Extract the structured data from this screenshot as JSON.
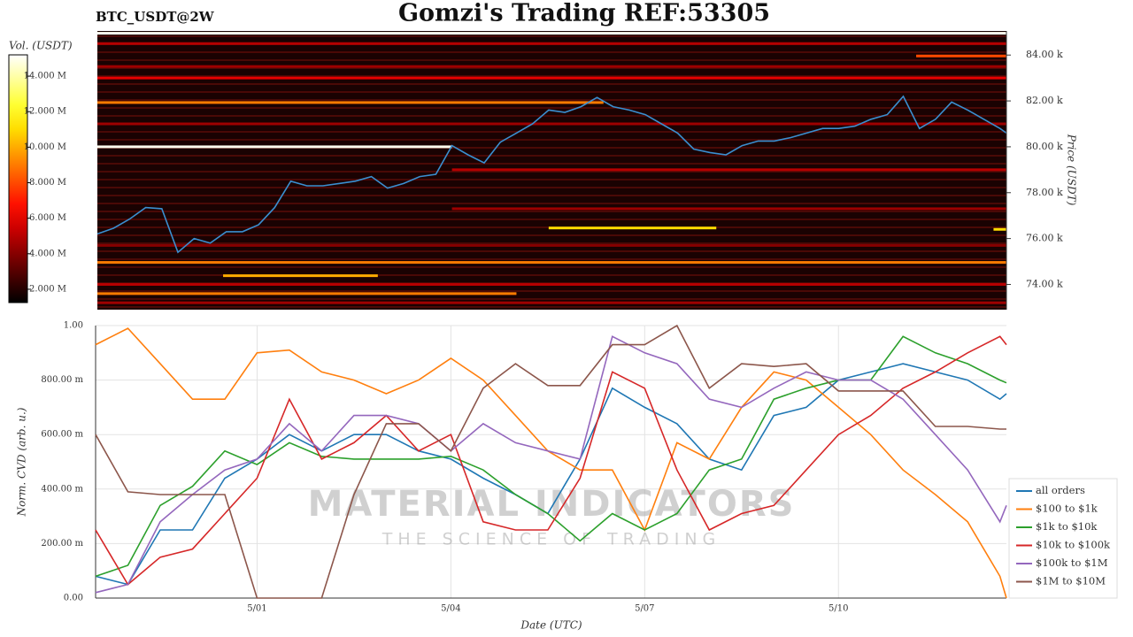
{
  "chart_data": [
    {
      "type": "heatmap",
      "title": "Gomzi's Trading REF:53305",
      "subtitle": "BTC_USDT@2W",
      "y_label": "Price (USDT)",
      "colorbar_label": "Vol. (USDT)",
      "xlim": [
        0.5,
        14.6
      ],
      "ylim": [
        72900,
        85050
      ],
      "yticks": [
        {
          "value": 74000,
          "label": "74.00 k"
        },
        {
          "value": 76000,
          "label": "76.00 k"
        },
        {
          "value": 78000,
          "label": "78.00 k"
        },
        {
          "value": 80000,
          "label": "80.00 k"
        },
        {
          "value": 82000,
          "label": "82.00 k"
        },
        {
          "value": 84000,
          "label": "84.00 k"
        }
      ],
      "colorbar_lim": [
        1250000,
        15200000
      ],
      "colorbar_ticks": [
        {
          "value": 2000000,
          "label": "2.000 M"
        },
        {
          "value": 4000000,
          "label": "4.000 M"
        },
        {
          "value": 6000000,
          "label": "6.000 M"
        },
        {
          "value": 8000000,
          "label": "8.000 M"
        },
        {
          "value": 10000000,
          "label": "10.000 M"
        },
        {
          "value": 12000000,
          "label": "12.000 M"
        },
        {
          "value": 14000000,
          "label": "14.000 M"
        }
      ],
      "levels": {
        "price": [
          84950,
          80000,
          76460,
          74960,
          74380,
          73600,
          81930,
          83000,
          83960,
          76400,
          84500,
          83500,
          81000,
          79000,
          77300,
          75700,
          74000,
          73200
        ],
        "start": [
          0.5,
          0.5,
          7.5,
          0.5,
          2.45,
          0.5,
          0.5,
          0.5,
          13.2,
          14.4,
          0.5,
          0.5,
          0.5,
          6.0,
          6.0,
          0.5,
          0.5,
          0.5
        ],
        "end": [
          14.6,
          6.0,
          10.1,
          14.6,
          4.85,
          7.0,
          8.35,
          14.6,
          14.6,
          14.6,
          14.6,
          14.6,
          14.6,
          14.6,
          14.6,
          14.6,
          14.6,
          14.6
        ],
        "volume": [
          15000000,
          15000000,
          11000000,
          9000000,
          10000000,
          9000000,
          9000000,
          6000000,
          8000000,
          11000000,
          5000000,
          4500000,
          4500000,
          5000000,
          4500000,
          4000000,
          5000000,
          4500000
        ]
      },
      "price_series": {
        "color": "#3a8fd0",
        "x": [
          0.5,
          0.75,
          1,
          1.25,
          1.5,
          1.75,
          2,
          2.25,
          2.5,
          2.75,
          3,
          3.25,
          3.5,
          3.75,
          4,
          4.25,
          4.5,
          4.75,
          5,
          5.25,
          5.5,
          5.75,
          6,
          6.25,
          6.5,
          6.75,
          7,
          7.25,
          7.5,
          7.75,
          8,
          8.25,
          8.5,
          8.75,
          9,
          9.25,
          9.5,
          9.75,
          10,
          10.25,
          10.5,
          10.75,
          11,
          11.25,
          11.5,
          11.75,
          12,
          12.25,
          12.5,
          12.75,
          13,
          13.25,
          13.5,
          13.75,
          14,
          14.25,
          14.5,
          14.6
        ],
        "values": [
          76200,
          76450,
          76850,
          77350,
          77300,
          75400,
          76000,
          75800,
          76300,
          76300,
          76600,
          77350,
          78500,
          78300,
          78300,
          78400,
          78500,
          78700,
          78200,
          78400,
          78700,
          78800,
          80050,
          79650,
          79300,
          80200,
          80600,
          81000,
          81600,
          81500,
          81750,
          82150,
          81750,
          81600,
          81400,
          81000,
          80600,
          79900,
          79750,
          79650,
          80050,
          80250,
          80250,
          80400,
          80600,
          80800,
          80800,
          80900,
          81200,
          81400,
          82200,
          80800,
          81200,
          81950,
          81600,
          81200,
          80800,
          80600
        ]
      }
    },
    {
      "type": "line",
      "y_label": "Norm. CVD (arb. u.)",
      "x_label": "Date (UTC)",
      "xlim": [
        0.5,
        14.6
      ],
      "ylim": [
        0,
        1
      ],
      "xticks": [
        {
          "value": 3,
          "label": "5/01"
        },
        {
          "value": 6,
          "label": "5/04"
        },
        {
          "value": 9,
          "label": "5/07"
        },
        {
          "value": 12,
          "label": "5/10"
        }
      ],
      "yticks": [
        {
          "value": 0,
          "label": "0.00"
        },
        {
          "value": 0.2,
          "label": "200.00 m"
        },
        {
          "value": 0.4,
          "label": "400.00 m"
        },
        {
          "value": 0.6,
          "label": "600.00 m"
        },
        {
          "value": 0.8,
          "label": "800.00 m"
        },
        {
          "value": 1,
          "label": "1.00"
        }
      ],
      "grid": true,
      "legend": "lower right",
      "watermark": [
        "MATERIAL INDICATORS",
        "THE SCIENCE OF TRADING"
      ],
      "x": [
        0.5,
        1,
        1.5,
        2,
        2.5,
        3,
        3.5,
        4,
        4.5,
        5,
        5.5,
        6,
        6.5,
        7,
        7.5,
        8,
        8.5,
        9,
        9.5,
        10,
        10.5,
        11,
        11.5,
        12,
        12.5,
        13,
        13.5,
        14,
        14.5,
        14.6
      ],
      "series": [
        {
          "name": "all orders",
          "color": "#1f77b4",
          "values": [
            0.08,
            0.05,
            0.25,
            0.25,
            0.44,
            0.51,
            0.6,
            0.54,
            0.6,
            0.6,
            0.54,
            0.51,
            0.44,
            0.38,
            0.31,
            0.51,
            0.77,
            0.7,
            0.64,
            0.51,
            0.47,
            0.67,
            0.7,
            0.8,
            0.83,
            0.86,
            0.83,
            0.8,
            0.73,
            0.75
          ]
        },
        {
          "name": "$100 to $1k",
          "color": "#ff7f0e",
          "values": [
            0.93,
            0.99,
            0.86,
            0.73,
            0.73,
            0.9,
            0.91,
            0.83,
            0.8,
            0.75,
            0.8,
            0.88,
            0.8,
            0.67,
            0.54,
            0.47,
            0.47,
            0.25,
            0.57,
            0.51,
            0.7,
            0.83,
            0.8,
            0.7,
            0.6,
            0.47,
            0.38,
            0.28,
            0.08,
            0
          ]
        },
        {
          "name": "$1k to $10k",
          "color": "#2ca02c",
          "values": [
            0.08,
            0.12,
            0.34,
            0.41,
            0.54,
            0.49,
            0.57,
            0.52,
            0.51,
            0.51,
            0.51,
            0.52,
            0.47,
            0.38,
            0.31,
            0.21,
            0.31,
            0.25,
            0.31,
            0.47,
            0.51,
            0.73,
            0.77,
            0.8,
            0.8,
            0.96,
            0.9,
            0.86,
            0.8,
            0.79
          ]
        },
        {
          "name": "$10k to $100k",
          "color": "#d62728",
          "values": [
            0.25,
            0.05,
            0.15,
            0.18,
            0.31,
            0.44,
            0.73,
            0.51,
            0.57,
            0.67,
            0.54,
            0.6,
            0.28,
            0.25,
            0.25,
            0.44,
            0.83,
            0.77,
            0.47,
            0.25,
            0.31,
            0.34,
            0.47,
            0.6,
            0.67,
            0.77,
            0.83,
            0.9,
            0.96,
            0.93
          ]
        },
        {
          "name": "$100k to $1M",
          "color": "#9467bd",
          "values": [
            0.02,
            0.05,
            0.28,
            0.38,
            0.47,
            0.51,
            0.64,
            0.54,
            0.67,
            0.67,
            0.64,
            0.54,
            0.64,
            0.57,
            0.54,
            0.51,
            0.96,
            0.9,
            0.86,
            0.73,
            0.7,
            0.77,
            0.83,
            0.8,
            0.8,
            0.73,
            0.6,
            0.47,
            0.28,
            0.34
          ]
        },
        {
          "name": "$1M to $10M",
          "color": "#8c564b",
          "values": [
            0.6,
            0.39,
            0.38,
            0.38,
            0.38,
            0,
            0,
            0,
            0.38,
            0.64,
            0.64,
            0.54,
            0.77,
            0.86,
            0.78,
            0.78,
            0.93,
            0.93,
            1,
            0.77,
            0.86,
            0.85,
            0.86,
            0.76,
            0.76,
            0.76,
            0.63,
            0.63,
            0.62,
            0.62
          ]
        }
      ]
    }
  ]
}
